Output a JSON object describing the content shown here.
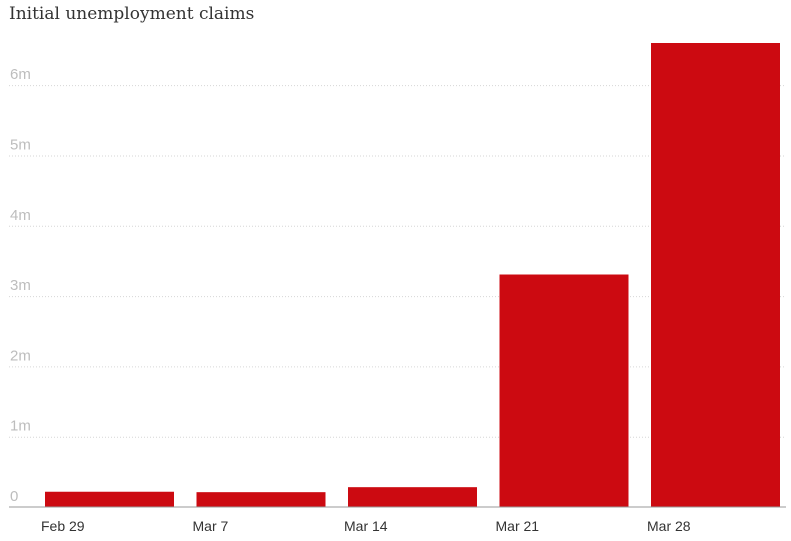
{
  "chart_data": {
    "type": "bar",
    "title": "Initial unemployment claims",
    "xlabel": "",
    "ylabel": "",
    "categories": [
      "Feb 29",
      "Mar 7",
      "Mar 14",
      "Mar 21",
      "Mar 28"
    ],
    "values": [
      217000,
      211000,
      282000,
      3307000,
      6648000
    ],
    "ylim": [
      0,
      6600000
    ],
    "yticks": [
      0,
      1000000,
      2000000,
      3000000,
      4000000,
      5000000,
      6000000
    ],
    "ytick_labels": [
      "0",
      "1m",
      "2m",
      "3m",
      "4m",
      "5m",
      "6m"
    ],
    "grid": true,
    "legend": "none",
    "bar_color": "#cc0a11"
  }
}
